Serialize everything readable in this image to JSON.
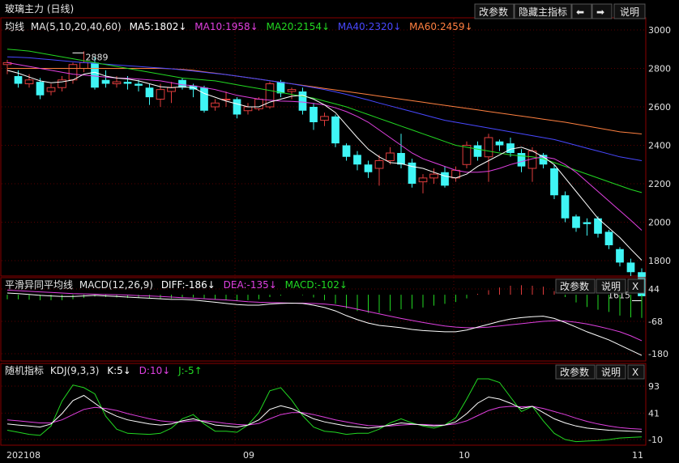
{
  "colors": {
    "up": "#e03c3c",
    "down": "#3ff5f5",
    "ma5": "#ffffff",
    "ma10": "#e040e0",
    "ma20": "#22d822",
    "ma40": "#4848ff",
    "ma60": "#ff8040",
    "diff": "#ffffff",
    "dea": "#e040e0",
    "macd_pos": "#e03c3c",
    "macd_neg": "#22d822",
    "k": "#ffffff",
    "d": "#e040e0",
    "j": "#22d822",
    "grid": "#5a0000",
    "border": "#8a0000"
  },
  "panel1": {
    "title": "玻璃主力 (日线)",
    "buttons": [
      "改参数",
      "隐藏主指标",
      "⬅",
      "➡",
      "说明"
    ],
    "indicator_name": "均线",
    "indicator_params": "MA(5,10,20,40,60)",
    "legend": [
      {
        "label": "MA5:1802↓",
        "color": "#ffffff"
      },
      {
        "label": "MA10:1958↓",
        "color": "#e040e0"
      },
      {
        "label": "MA20:2154↓",
        "color": "#22d822"
      },
      {
        "label": "MA40:2320↓",
        "color": "#4848ff"
      },
      {
        "label": "MA60:2459↓",
        "color": "#ff8040"
      }
    ],
    "yticks": [
      "3000",
      "2800",
      "2600",
      "2400",
      "2200",
      "2000",
      "1800"
    ],
    "high_label": "2889",
    "low_label": "1615"
  },
  "panel2": {
    "title": "平滑异同平均线",
    "params": "MACD(12,26,9)",
    "legend": [
      {
        "label": "DIFF:-186↓",
        "color": "#ffffff"
      },
      {
        "label": "DEA:-135↓",
        "color": "#e040e0"
      },
      {
        "label": "MACD:-102↓",
        "color": "#22d822"
      }
    ],
    "buttons": [
      "改参数",
      "说明",
      "X"
    ],
    "yticks": [
      "44",
      "-68",
      "-180"
    ]
  },
  "panel3": {
    "title": "随机指标",
    "params": "KDJ(9,3,3)",
    "legend": [
      {
        "label": "K:5↓",
        "color": "#ffffff"
      },
      {
        "label": "D:10↓",
        "color": "#e040e0"
      },
      {
        "label": "J:-5↑",
        "color": "#22d822"
      }
    ],
    "buttons": [
      "改参数",
      "说明",
      "X"
    ],
    "yticks": [
      "93",
      "41",
      "-10"
    ]
  },
  "xaxis": {
    "labels": [
      "202108",
      "09",
      "10",
      "11"
    ]
  },
  "chart_data": {
    "type": "candlestick",
    "candles": [
      [
        2820,
        2830,
        2845,
        2770
      ],
      [
        2760,
        2720,
        2790,
        2700
      ],
      [
        2720,
        2740,
        2770,
        2700
      ],
      [
        2730,
        2660,
        2750,
        2640
      ],
      [
        2680,
        2700,
        2720,
        2660
      ],
      [
        2700,
        2740,
        2760,
        2680
      ],
      [
        2740,
        2820,
        2830,
        2720
      ],
      [
        2800,
        2830,
        2889,
        2780
      ],
      [
        2830,
        2700,
        2860,
        2690
      ],
      [
        2740,
        2720,
        2790,
        2700
      ],
      [
        2720,
        2730,
        2760,
        2700
      ],
      [
        2730,
        2720,
        2760,
        2690
      ],
      [
        2720,
        2710,
        2740,
        2680
      ],
      [
        2700,
        2650,
        2720,
        2610
      ],
      [
        2640,
        2690,
        2720,
        2600
      ],
      [
        2680,
        2700,
        2730,
        2620
      ],
      [
        2740,
        2700,
        2750,
        2690
      ],
      [
        2710,
        2690,
        2720,
        2650
      ],
      [
        2700,
        2580,
        2710,
        2570
      ],
      [
        2600,
        2620,
        2640,
        2580
      ],
      [
        2640,
        2640,
        2680,
        2600
      ],
      [
        2640,
        2560,
        2650,
        2540
      ],
      [
        2580,
        2600,
        2620,
        2560
      ],
      [
        2590,
        2640,
        2650,
        2580
      ],
      [
        2600,
        2720,
        2730,
        2590
      ],
      [
        2730,
        2670,
        2740,
        2650
      ],
      [
        2680,
        2690,
        2700,
        2640
      ],
      [
        2680,
        2580,
        2700,
        2560
      ],
      [
        2600,
        2520,
        2620,
        2480
      ],
      [
        2530,
        2550,
        2570,
        2500
      ],
      [
        2550,
        2410,
        2560,
        2390
      ],
      [
        2400,
        2340,
        2410,
        2320
      ],
      [
        2350,
        2300,
        2370,
        2270
      ],
      [
        2300,
        2260,
        2320,
        2230
      ],
      [
        2280,
        2320,
        2350,
        2190
      ],
      [
        2320,
        2360,
        2390,
        2300
      ],
      [
        2360,
        2300,
        2460,
        2280
      ],
      [
        2310,
        2200,
        2330,
        2180
      ],
      [
        2210,
        2230,
        2250,
        2150
      ],
      [
        2230,
        2250,
        2280,
        2200
      ],
      [
        2260,
        2190,
        2290,
        2180
      ],
      [
        2230,
        2270,
        2290,
        2210
      ],
      [
        2300,
        2400,
        2420,
        2280
      ],
      [
        2400,
        2340,
        2420,
        2320
      ],
      [
        2340,
        2440,
        2460,
        2210
      ],
      [
        2420,
        2400,
        2430,
        2370
      ],
      [
        2410,
        2360,
        2440,
        2340
      ],
      [
        2360,
        2290,
        2380,
        2260
      ],
      [
        2280,
        2370,
        2390,
        2210
      ],
      [
        2350,
        2300,
        2360,
        2280
      ],
      [
        2280,
        2140,
        2300,
        2120
      ],
      [
        2140,
        2020,
        2160,
        2000
      ],
      [
        2030,
        1970,
        2040,
        1950
      ],
      [
        2000,
        1990,
        2020,
        1930
      ],
      [
        2020,
        1940,
        2030,
        1920
      ],
      [
        1950,
        1880,
        1960,
        1860
      ],
      [
        1860,
        1790,
        1870,
        1770
      ],
      [
        1790,
        1740,
        1810,
        1720
      ],
      [
        1740,
        1615,
        1760,
        1600
      ]
    ],
    "ma5": [
      2790,
      2775,
      2755,
      2735,
      2725,
      2730,
      2740,
      2770,
      2780,
      2760,
      2750,
      2745,
      2735,
      2720,
      2705,
      2700,
      2705,
      2700,
      2670,
      2650,
      2630,
      2615,
      2600,
      2600,
      2625,
      2640,
      2655,
      2660,
      2640,
      2610,
      2570,
      2505,
      2440,
      2380,
      2340,
      2310,
      2305,
      2290,
      2280,
      2260,
      2240,
      2230,
      2250,
      2290,
      2320,
      2350,
      2380,
      2390,
      2370,
      2340,
      2300,
      2230,
      2160,
      2090,
      2020,
      1970,
      1920,
      1860,
      1802
    ],
    "ma10": [
      2830,
      2820,
      2810,
      2800,
      2790,
      2780,
      2770,
      2765,
      2760,
      2755,
      2750,
      2748,
      2745,
      2740,
      2735,
      2725,
      2715,
      2710,
      2700,
      2690,
      2675,
      2660,
      2650,
      2640,
      2635,
      2630,
      2628,
      2625,
      2618,
      2610,
      2595,
      2575,
      2550,
      2520,
      2480,
      2440,
      2400,
      2360,
      2330,
      2310,
      2290,
      2270,
      2260,
      2260,
      2265,
      2280,
      2300,
      2315,
      2330,
      2340,
      2330,
      2300,
      2260,
      2210,
      2160,
      2110,
      2060,
      2010,
      1958
    ],
    "ma20": [
      2900,
      2895,
      2890,
      2880,
      2870,
      2860,
      2850,
      2840,
      2830,
      2820,
      2810,
      2800,
      2790,
      2780,
      2770,
      2760,
      2750,
      2745,
      2740,
      2735,
      2725,
      2715,
      2705,
      2695,
      2685,
      2675,
      2665,
      2655,
      2645,
      2630,
      2615,
      2600,
      2580,
      2560,
      2540,
      2520,
      2500,
      2480,
      2460,
      2440,
      2420,
      2400,
      2390,
      2380,
      2370,
      2360,
      2350,
      2345,
      2340,
      2330,
      2310,
      2290,
      2270,
      2250,
      2230,
      2210,
      2190,
      2170,
      2154
    ],
    "ma40": [
      2860,
      2858,
      2855,
      2850,
      2845,
      2840,
      2835,
      2830,
      2826,
      2822,
      2818,
      2814,
      2810,
      2806,
      2802,
      2798,
      2792,
      2786,
      2780,
      2774,
      2768,
      2760,
      2752,
      2744,
      2736,
      2728,
      2720,
      2710,
      2700,
      2690,
      2678,
      2665,
      2650,
      2636,
      2620,
      2605,
      2590,
      2575,
      2560,
      2545,
      2530,
      2520,
      2510,
      2500,
      2490,
      2480,
      2470,
      2460,
      2450,
      2440,
      2430,
      2415,
      2400,
      2385,
      2370,
      2355,
      2340,
      2330,
      2320
    ],
    "ma60": [
      2800,
      2800,
      2800,
      2800,
      2800,
      2800,
      2800,
      2800,
      2800,
      2800,
      2800,
      2800,
      2800,
      2800,
      2800,
      2798,
      2795,
      2790,
      2782,
      2775,
      2768,
      2760,
      2752,
      2744,
      2736,
      2728,
      2720,
      2712,
      2704,
      2696,
      2688,
      2680,
      2672,
      2664,
      2656,
      2648,
      2640,
      2632,
      2624,
      2616,
      2608,
      2600,
      2592,
      2584,
      2576,
      2568,
      2560,
      2552,
      2544,
      2536,
      2528,
      2520,
      2510,
      2500,
      2490,
      2480,
      2470,
      2465,
      2459
    ],
    "macd_diff": [
      30,
      28,
      25,
      22,
      20,
      18,
      18,
      20,
      22,
      20,
      18,
      16,
      14,
      12,
      10,
      8,
      8,
      6,
      2,
      -2,
      -6,
      -10,
      -12,
      -12,
      -8,
      -6,
      -5,
      -6,
      -12,
      -20,
      -32,
      -48,
      -62,
      -74,
      -82,
      -86,
      -90,
      -96,
      -100,
      -102,
      -104,
      -104,
      -98,
      -88,
      -78,
      -68,
      -60,
      -55,
      -52,
      -50,
      -58,
      -72,
      -88,
      -104,
      -118,
      -132,
      -150,
      -168,
      -186
    ],
    "macd_dea": [
      40,
      38,
      36,
      34,
      32,
      30,
      28,
      27,
      26,
      25,
      24,
      23,
      21,
      20,
      18,
      16,
      14,
      12,
      10,
      8,
      6,
      3,
      0,
      -2,
      -3,
      -4,
      -5,
      -5,
      -6,
      -8,
      -12,
      -18,
      -26,
      -34,
      -42,
      -50,
      -58,
      -65,
      -72,
      -78,
      -84,
      -88,
      -90,
      -90,
      -88,
      -84,
      -80,
      -76,
      -72,
      -68,
      -66,
      -67,
      -71,
      -77,
      -85,
      -94,
      -104,
      -118,
      -135
    ],
    "macd_bar": [
      -20,
      -20,
      -22,
      -24,
      -24,
      -24,
      -20,
      -14,
      -8,
      -10,
      -12,
      -14,
      -14,
      -16,
      -16,
      -16,
      -12,
      -12,
      -16,
      -20,
      -24,
      -26,
      -24,
      -20,
      -10,
      -4,
      0,
      -2,
      -12,
      -24,
      -40,
      -60,
      -72,
      -80,
      -80,
      -72,
      -64,
      -62,
      -56,
      -48,
      -40,
      -32,
      -16,
      4,
      20,
      32,
      40,
      42,
      40,
      36,
      16,
      -10,
      -34,
      -54,
      -66,
      -76,
      -92,
      -100,
      -102
    ],
    "kdj_k": [
      20,
      18,
      16,
      14,
      20,
      40,
      65,
      75,
      60,
      45,
      35,
      28,
      24,
      20,
      18,
      20,
      26,
      30,
      24,
      18,
      16,
      14,
      18,
      28,
      48,
      55,
      50,
      40,
      30,
      24,
      20,
      16,
      14,
      12,
      14,
      18,
      22,
      20,
      18,
      16,
      18,
      24,
      40,
      60,
      72,
      68,
      60,
      50,
      54,
      42,
      30,
      22,
      16,
      12,
      10,
      8,
      7,
      6,
      5
    ],
    "kdj_d": [
      28,
      26,
      24,
      22,
      22,
      28,
      38,
      48,
      52,
      50,
      46,
      40,
      35,
      30,
      26,
      24,
      24,
      26,
      26,
      24,
      21,
      19,
      18,
      21,
      30,
      38,
      42,
      42,
      38,
      33,
      28,
      24,
      20,
      17,
      16,
      16,
      18,
      19,
      19,
      18,
      18,
      20,
      26,
      36,
      46,
      52,
      54,
      53,
      54,
      50,
      44,
      38,
      31,
      25,
      20,
      16,
      13,
      11,
      10
    ],
    "kdj_j": [
      8,
      4,
      0,
      -2,
      16,
      64,
      95,
      90,
      78,
      35,
      10,
      2,
      1,
      0,
      2,
      12,
      30,
      38,
      20,
      6,
      6,
      4,
      18,
      42,
      84,
      90,
      66,
      36,
      14,
      6,
      4,
      0,
      2,
      2,
      10,
      22,
      30,
      22,
      16,
      12,
      18,
      32,
      68,
      108,
      124,
      100,
      72,
      44,
      54,
      26,
      2,
      -10,
      -14,
      -13,
      -12,
      -10,
      -7,
      -6,
      -5
    ]
  }
}
